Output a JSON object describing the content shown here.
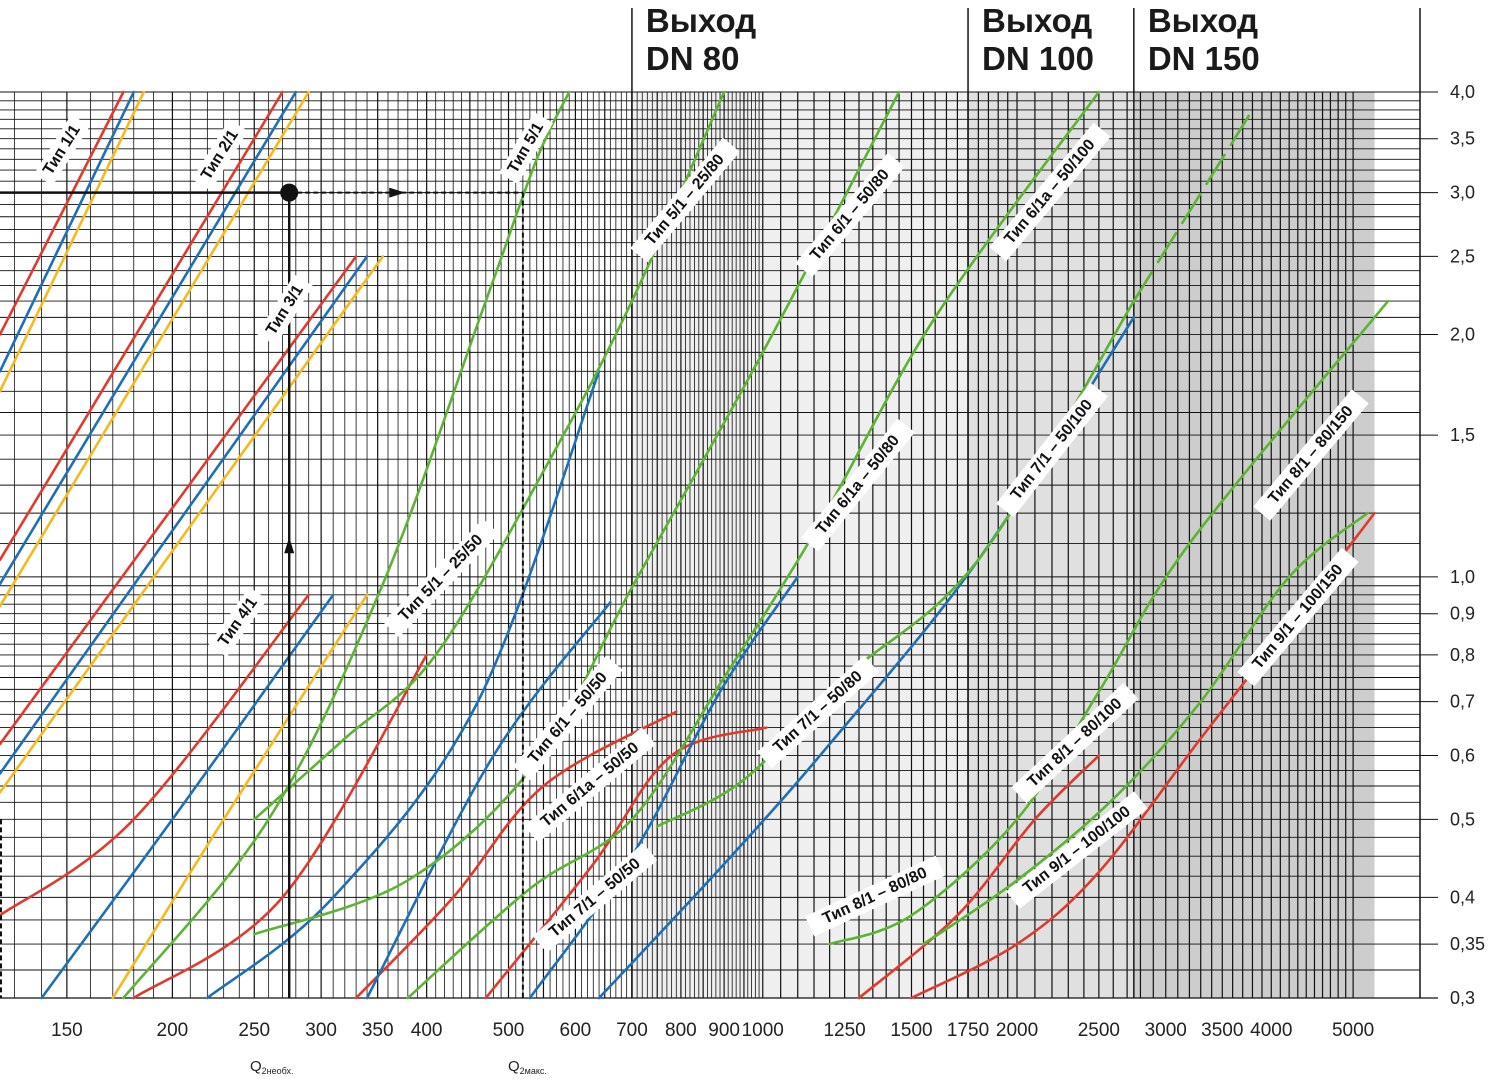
{
  "chart_data": {
    "type": "line",
    "title": "",
    "xlabel": "",
    "ylabel": "",
    "xscale": "log",
    "yscale": "log",
    "xlim": [
      125,
      6000
    ],
    "ylim": [
      0.3,
      4.0
    ],
    "grid": true,
    "x_ticks": [
      150,
      200,
      250,
      300,
      350,
      400,
      500,
      600,
      700,
      800,
      900,
      1000,
      1250,
      1500,
      1750,
      2000,
      2500,
      3000,
      3500,
      4000,
      5000
    ],
    "x_tick_labels": [
      "150",
      "200",
      "250",
      "300",
      "350",
      "400",
      "500",
      "600",
      "700",
      "800",
      "900",
      "1000",
      "1250",
      "1500",
      "1750",
      "2000",
      "2500",
      "3000",
      "3500",
      "4000",
      "5000"
    ],
    "y_ticks": [
      0.3,
      0.35,
      0.4,
      0.5,
      0.6,
      0.7,
      0.8,
      0.9,
      1.0,
      1.5,
      2.0,
      2.5,
      3.0,
      3.5,
      4.0
    ],
    "y_tick_labels": [
      "0,3",
      "0,35",
      "0,4",
      "0,5",
      "0,6",
      "0,7",
      "0,8",
      "0,9",
      "1,0",
      "1,5",
      "2,0",
      "2,5",
      "3,0",
      "3,5",
      "4,0"
    ],
    "colors": {
      "red": "#e03a2f",
      "blue": "#1f6fb8",
      "yellow": "#f6b91d",
      "green": "#5db333",
      "zone1": "#efefef",
      "zone2": "#e0e0e0",
      "zone3": "#cdcdcd"
    },
    "zones": [
      {
        "name": "DN 80",
        "header": [
          "Выход",
          "DN 80"
        ],
        "x_from": 700,
        "x_to": 1750,
        "color": "#efefef"
      },
      {
        "name": "DN 100",
        "header": [
          "Выход",
          "DN 100"
        ],
        "x_from": 1750,
        "x_to": 2750,
        "color": "#e0e0e0"
      },
      {
        "name": "DN 150",
        "header": [
          "Выход",
          "DN 150"
        ],
        "x_from": 2750,
        "x_to": 5300,
        "color": "#cdcdcd"
      }
    ],
    "series": [
      {
        "color": "red",
        "points": [
          [
            125,
            2.0
          ],
          [
            175,
            4.0
          ]
        ]
      },
      {
        "color": "blue",
        "points": [
          [
            125,
            1.8
          ],
          [
            180,
            4.0
          ]
        ]
      },
      {
        "color": "yellow",
        "points": [
          [
            125,
            1.7
          ],
          [
            185,
            4.0
          ]
        ]
      },
      {
        "color": "red",
        "points": [
          [
            125,
            1.05
          ],
          [
            270,
            4.0
          ]
        ]
      },
      {
        "color": "blue",
        "points": [
          [
            125,
            0.98
          ],
          [
            280,
            4.0
          ]
        ]
      },
      {
        "color": "yellow",
        "points": [
          [
            125,
            0.92
          ],
          [
            290,
            4.0
          ]
        ]
      },
      {
        "color": "red",
        "points": [
          [
            125,
            0.62
          ],
          [
            330,
            2.5
          ]
        ]
      },
      {
        "color": "blue",
        "points": [
          [
            125,
            0.57
          ],
          [
            340,
            2.5
          ]
        ]
      },
      {
        "color": "yellow",
        "points": [
          [
            125,
            0.54
          ],
          [
            355,
            2.5
          ]
        ]
      },
      {
        "color": "red",
        "points": [
          [
            125,
            0.38
          ],
          [
            180,
            0.5
          ],
          [
            290,
            0.95
          ]
        ]
      },
      {
        "color": "blue",
        "points": [
          [
            140,
            0.3
          ],
          [
            200,
            0.5
          ],
          [
            310,
            0.95
          ]
        ]
      },
      {
        "color": "yellow",
        "points": [
          [
            170,
            0.3
          ],
          [
            230,
            0.5
          ],
          [
            340,
            0.95
          ]
        ]
      },
      {
        "color": "green",
        "points": [
          [
            175,
            0.3
          ],
          [
            260,
            0.5
          ],
          [
            355,
            0.98
          ],
          [
            470,
            2.2
          ],
          [
            540,
            3.3
          ],
          [
            590,
            4.0
          ]
        ]
      },
      {
        "color": "red",
        "points": [
          [
            180,
            0.3
          ],
          [
            270,
            0.4
          ],
          [
            400,
            0.8
          ]
        ]
      },
      {
        "color": "blue",
        "points": [
          [
            220,
            0.3
          ],
          [
            310,
            0.4
          ],
          [
            460,
            0.7
          ],
          [
            640,
            1.8
          ]
        ]
      },
      {
        "color": "green",
        "points": [
          [
            250,
            0.5
          ],
          [
            320,
            0.63
          ],
          [
            410,
            0.8
          ],
          [
            560,
            1.4
          ],
          [
            700,
            2.2
          ],
          [
            900,
            4.0
          ]
        ]
      },
      {
        "color": "red",
        "points": [
          [
            330,
            0.3
          ],
          [
            430,
            0.4
          ],
          [
            550,
            0.55
          ],
          [
            790,
            0.68
          ]
        ]
      },
      {
        "color": "blue",
        "points": [
          [
            340,
            0.3
          ],
          [
            480,
            0.6
          ],
          [
            660,
            0.93
          ]
        ]
      },
      {
        "color": "green",
        "points": [
          [
            250,
            0.36
          ],
          [
            380,
            0.42
          ],
          [
            540,
            0.59
          ],
          [
            700,
            0.97
          ],
          [
            1000,
            1.9
          ],
          [
            1450,
            4.0
          ]
        ]
      },
      {
        "color": "red",
        "points": [
          [
            470,
            0.3
          ],
          [
            630,
            0.44
          ],
          [
            780,
            0.6
          ],
          [
            1010,
            0.65
          ]
        ]
      },
      {
        "color": "blue",
        "points": [
          [
            530,
            0.3
          ],
          [
            700,
            0.45
          ],
          [
            890,
            0.72
          ],
          [
            1100,
            1.0
          ]
        ]
      },
      {
        "color": "green",
        "points": [
          [
            380,
            0.3
          ],
          [
            530,
            0.41
          ],
          [
            700,
            0.5
          ],
          [
            900,
            0.75
          ],
          [
            1160,
            1.15
          ],
          [
            1600,
            2.1
          ],
          [
            2500,
            4.0
          ]
        ]
      },
      {
        "color": "blue",
        "points": [
          [
            640,
            0.3
          ],
          [
            900,
            0.44
          ],
          [
            1200,
            0.62
          ],
          [
            1800,
            1.05
          ],
          [
            2750,
            2.1
          ]
        ]
      },
      {
        "color": "green",
        "points": [
          [
            750,
            0.49
          ],
          [
            950,
            0.56
          ],
          [
            1250,
            0.75
          ],
          [
            1800,
            1.05
          ],
          [
            2750,
            2.2
          ]
        ]
      },
      {
        "color": "green",
        "points": [
          [
            1200,
            0.35
          ],
          [
            1500,
            0.38
          ],
          [
            2000,
            0.5
          ],
          [
            2500,
            0.72
          ],
          [
            3200,
            1.1
          ],
          [
            5500,
            2.2
          ]
        ]
      },
      {
        "color": "green",
        "dash": "solid-then-dashed",
        "points": [
          [
            2750,
            2.2
          ],
          [
            3800,
            3.8
          ]
        ]
      },
      {
        "color": "red",
        "points": [
          [
            1300,
            0.3
          ],
          [
            1700,
            0.38
          ],
          [
            2100,
            0.5
          ],
          [
            2500,
            0.6
          ]
        ]
      },
      {
        "color": "green",
        "points": [
          [
            1550,
            0.35
          ],
          [
            2000,
            0.42
          ],
          [
            2600,
            0.53
          ],
          [
            3300,
            0.7
          ],
          [
            4200,
            1.0
          ],
          [
            5200,
            1.2
          ]
        ]
      },
      {
        "color": "red",
        "points": [
          [
            1500,
            0.3
          ],
          [
            2000,
            0.35
          ],
          [
            2500,
            0.43
          ],
          [
            3300,
            0.63
          ],
          [
            4300,
            0.9
          ],
          [
            5300,
            1.2
          ]
        ]
      }
    ],
    "annotations": [
      {
        "text": "Тип 1/1"
      },
      {
        "text": "Тип 2/1"
      },
      {
        "text": "Тип 3/1"
      },
      {
        "text": "Тип 4/1"
      },
      {
        "text": "Тип 5/1"
      },
      {
        "text": "Тип 5/1 – 25/50"
      },
      {
        "text": "Тип 5/1 – 25/80"
      },
      {
        "text": "Тип 6/1 – 50/50"
      },
      {
        "text": "Тип 6/1 – 50/80"
      },
      {
        "text": "Тип 6/1a – 50/50"
      },
      {
        "text": "Тип 6/1a – 50/80"
      },
      {
        "text": "Тип 6/1a – 50/100"
      },
      {
        "text": "Тип 7/1 – 50/50"
      },
      {
        "text": "Тип 7/1 – 50/80"
      },
      {
        "text": "Тип 7/1 – 50/100"
      },
      {
        "text": "Тип 8/1 – 80/80"
      },
      {
        "text": "Тип 8/1 – 80/100"
      },
      {
        "text": "Тип 8/1 – 80/150"
      },
      {
        "text": "Тип 9/1 – 100/100"
      },
      {
        "text": "Тип 9/1 – 100/150"
      }
    ],
    "example": {
      "y": 3.0,
      "x_required": 275,
      "x_max": 520
    },
    "x_marker_labels": {
      "q_required_main": "Q",
      "q_required_sub": "2необх.",
      "q_max_main": "Q",
      "q_max_sub": "2макс."
    }
  }
}
